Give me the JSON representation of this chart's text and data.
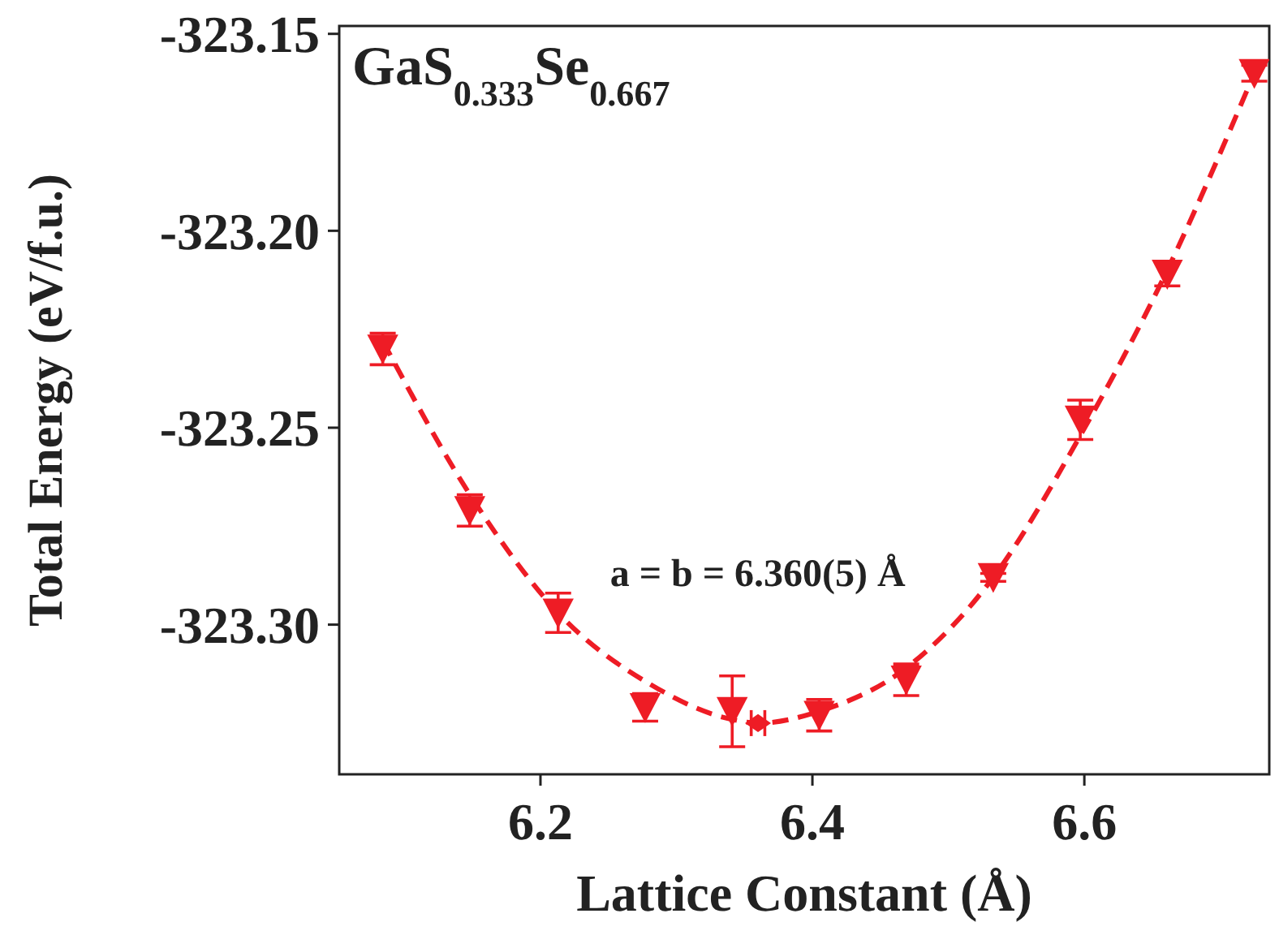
{
  "chart_data": {
    "type": "scatter",
    "title": "GaS$_{0.333}$Se$_{0.667}$",
    "xlabel": "Lattice Constant (Å)",
    "ylabel": "Total Energy (eV/f.u.)",
    "xlim": [
      6.052,
      6.736
    ],
    "xticks": [
      6.2,
      6.4,
      6.6
    ],
    "ylim": [
      -323.338,
      -323.148
    ],
    "yticks": [
      {
        "value": -323.15,
        "label": "-323.15"
      },
      {
        "value": -323.2,
        "label": "-323.20"
      },
      {
        "value": -323.25,
        "label": "-323.25"
      },
      {
        "value": -323.3,
        "label": "-323.30"
      }
    ],
    "annotations": [
      "a = b = 6.360(5) Å"
    ],
    "grid": false,
    "series": [
      {
        "type": "line",
        "color": "#ee1c25",
        "line_style": "dashed",
        "marker": "none",
        "x": [
          6.084,
          6.15,
          6.213,
          6.28,
          6.34,
          6.36,
          6.405,
          6.469,
          6.533,
          6.597,
          6.661,
          6.725
        ],
        "values": [
          -323.228,
          -323.268,
          -323.297,
          -323.315,
          -323.324,
          -323.325,
          -323.322,
          -323.311,
          -323.288,
          -323.252,
          -323.21,
          -323.16
        ]
      },
      {
        "color": "#ee1c25",
        "marker": "triangle",
        "x": [
          6.084,
          6.148,
          6.213,
          6.277,
          6.341,
          6.405,
          6.469,
          6.533,
          6.597,
          6.661,
          6.725
        ],
        "values": [
          -323.23,
          -323.271,
          -323.297,
          -323.321,
          -323.322,
          -323.323,
          -323.314,
          -323.288,
          -323.248,
          -323.211,
          -323.16
        ],
        "errors": [
          0.004,
          0.004,
          0.005,
          0.0035,
          0.009,
          0.004,
          0.004,
          0.001,
          0.005,
          0.003,
          0.002
        ]
      },
      {
        "color": "#ee1c25",
        "marker": "diamond",
        "x": [
          6.36
        ],
        "values": [
          -323.325
        ],
        "xerrors": [
          0.005
        ]
      }
    ]
  }
}
